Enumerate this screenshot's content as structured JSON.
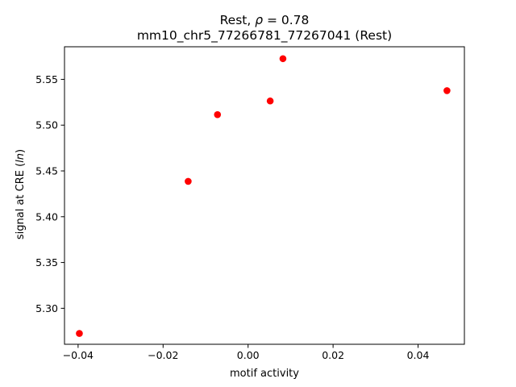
{
  "chart_data": {
    "type": "scatter",
    "title_prefix": "Rest, ",
    "title_rho_symbol": "ρ",
    "title_rho_rest": " = 0.78",
    "subtitle": "mm10_chr5_77266781_77267041 (Rest)",
    "xlabel": "motif activity",
    "ylabel_prefix": "signal at CRE (",
    "ylabel_italic": "ln",
    "ylabel_suffix": ")",
    "xlim": [
      -0.0432,
      0.0509
    ],
    "ylim": [
      5.2607,
      5.5856
    ],
    "xticks": [
      -0.04,
      -0.02,
      0.0,
      0.02,
      0.04
    ],
    "xtick_labels": [
      "−0.04",
      "−0.02",
      "0.00",
      "0.02",
      "0.04"
    ],
    "yticks": [
      5.3,
      5.35,
      5.4,
      5.45,
      5.5,
      5.55
    ],
    "ytick_labels": [
      "5.30",
      "5.35",
      "5.40",
      "5.45",
      "5.50",
      "5.55"
    ],
    "grid": false,
    "marker_color": "#ff0000",
    "points": [
      {
        "x": -0.0397,
        "y": 5.2725
      },
      {
        "x": -0.0141,
        "y": 5.4386
      },
      {
        "x": -0.0072,
        "y": 5.5115
      },
      {
        "x": 0.0052,
        "y": 5.5264
      },
      {
        "x": 0.0082,
        "y": 5.5726
      },
      {
        "x": 0.0468,
        "y": 5.5377
      }
    ]
  }
}
